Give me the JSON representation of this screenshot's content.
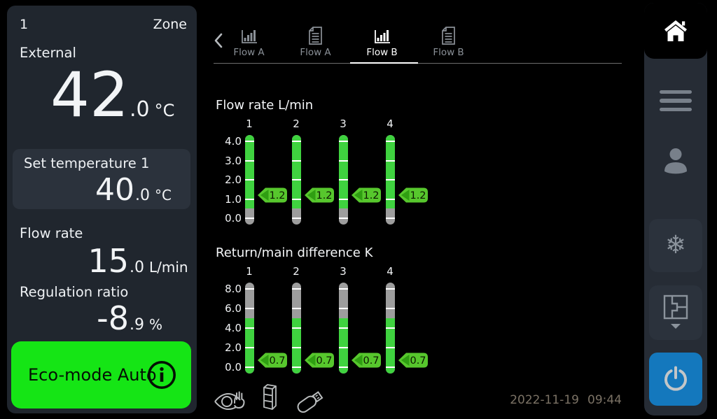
{
  "zone_panel": {
    "zone_number": "1",
    "zone_label": "Zone",
    "external": {
      "label": "External",
      "int": "42",
      "frac": ".0",
      "unit": "°C"
    },
    "set_temperature": {
      "label": "Set temperature 1",
      "int": "40",
      "frac": ".0",
      "unit": "°C"
    },
    "flow_rate": {
      "label": "Flow rate",
      "int": "15",
      "frac": ".0",
      "unit": "L/min"
    },
    "regulation_ratio": {
      "label": "Regulation ratio",
      "int": "-8",
      "frac": ".9",
      "unit": "%"
    },
    "eco_button": {
      "label": "Eco-mode Auto",
      "icon": "info-icon"
    }
  },
  "header_tabs": {
    "back_icon": "chevron-left-icon",
    "items": [
      {
        "label": "Flow A",
        "icon": "bar-chart-icon",
        "active": false
      },
      {
        "label": "Flow A",
        "icon": "document-icon",
        "active": false
      },
      {
        "label": "Flow B",
        "icon": "bar-chart-icon",
        "active": true
      },
      {
        "label": "Flow B",
        "icon": "document-icon",
        "active": false
      }
    ]
  },
  "chart_data": [
    {
      "type": "bar",
      "title": "Flow rate L/min",
      "categories": [
        "1",
        "2",
        "3",
        "4"
      ],
      "values": [
        1.2,
        1.2,
        1.2,
        1.2
      ],
      "value_labels": [
        "1.2",
        "1.2",
        "1.2",
        "1.2"
      ],
      "ylim": [
        0.0,
        4.0
      ],
      "yticks": [
        4.0,
        3.0,
        2.0,
        1.0,
        0.0
      ],
      "ytick_labels": [
        "4.0",
        "3.0",
        "2.0",
        "1.0",
        "0.0"
      ],
      "green_zone": [
        0.5,
        4.35
      ],
      "gray_zone": [
        -0.35,
        0.5
      ],
      "legend": "none",
      "grid": "white-ticks-on-gauge"
    },
    {
      "type": "bar",
      "title": "Return/main difference K",
      "categories": [
        "1",
        "2",
        "3",
        "4"
      ],
      "values": [
        0.7,
        0.7,
        0.7,
        0.7
      ],
      "value_labels": [
        "0.7",
        "0.7",
        "0.7",
        "0.7"
      ],
      "ylim": [
        0.0,
        8.0
      ],
      "yticks": [
        8.0,
        6.0,
        4.0,
        2.0,
        0.0
      ],
      "ytick_labels": [
        "8.0",
        "6.0",
        "4.0",
        "2.0",
        "0.0"
      ],
      "green_zone": [
        -0.65,
        5.0
      ],
      "gray_zone": [
        5.0,
        8.65
      ],
      "legend": "none",
      "grid": "white-ticks-on-gauge"
    }
  ],
  "status_bar": {
    "icons": [
      "supervision-eye-hand-icon",
      "controller-module-icon",
      "usb-stick-icon"
    ],
    "date": "2022-11-19",
    "time": "09:44"
  },
  "sidebar": {
    "items": [
      {
        "name": "home",
        "active": true
      },
      {
        "name": "menu",
        "active": false
      },
      {
        "name": "user",
        "active": false
      },
      {
        "name": "frost-protection",
        "active": false
      },
      {
        "name": "zone-select",
        "active": false
      },
      {
        "name": "power",
        "active": false
      }
    ],
    "frost_glyph": "❄"
  },
  "colors": {
    "bar_green": "#3fd23f",
    "bar_gray": "#9d9d9d",
    "tag_green": "#57c72d",
    "tag_arrow_green": "#2f9e12",
    "tag_text": "#0b1a00",
    "eco_green": "#15e515",
    "power_blue": "#1478bd",
    "panel_bg": "#20262e",
    "card_bg": "#2b323c",
    "sidebar_bg": "#262c35"
  }
}
